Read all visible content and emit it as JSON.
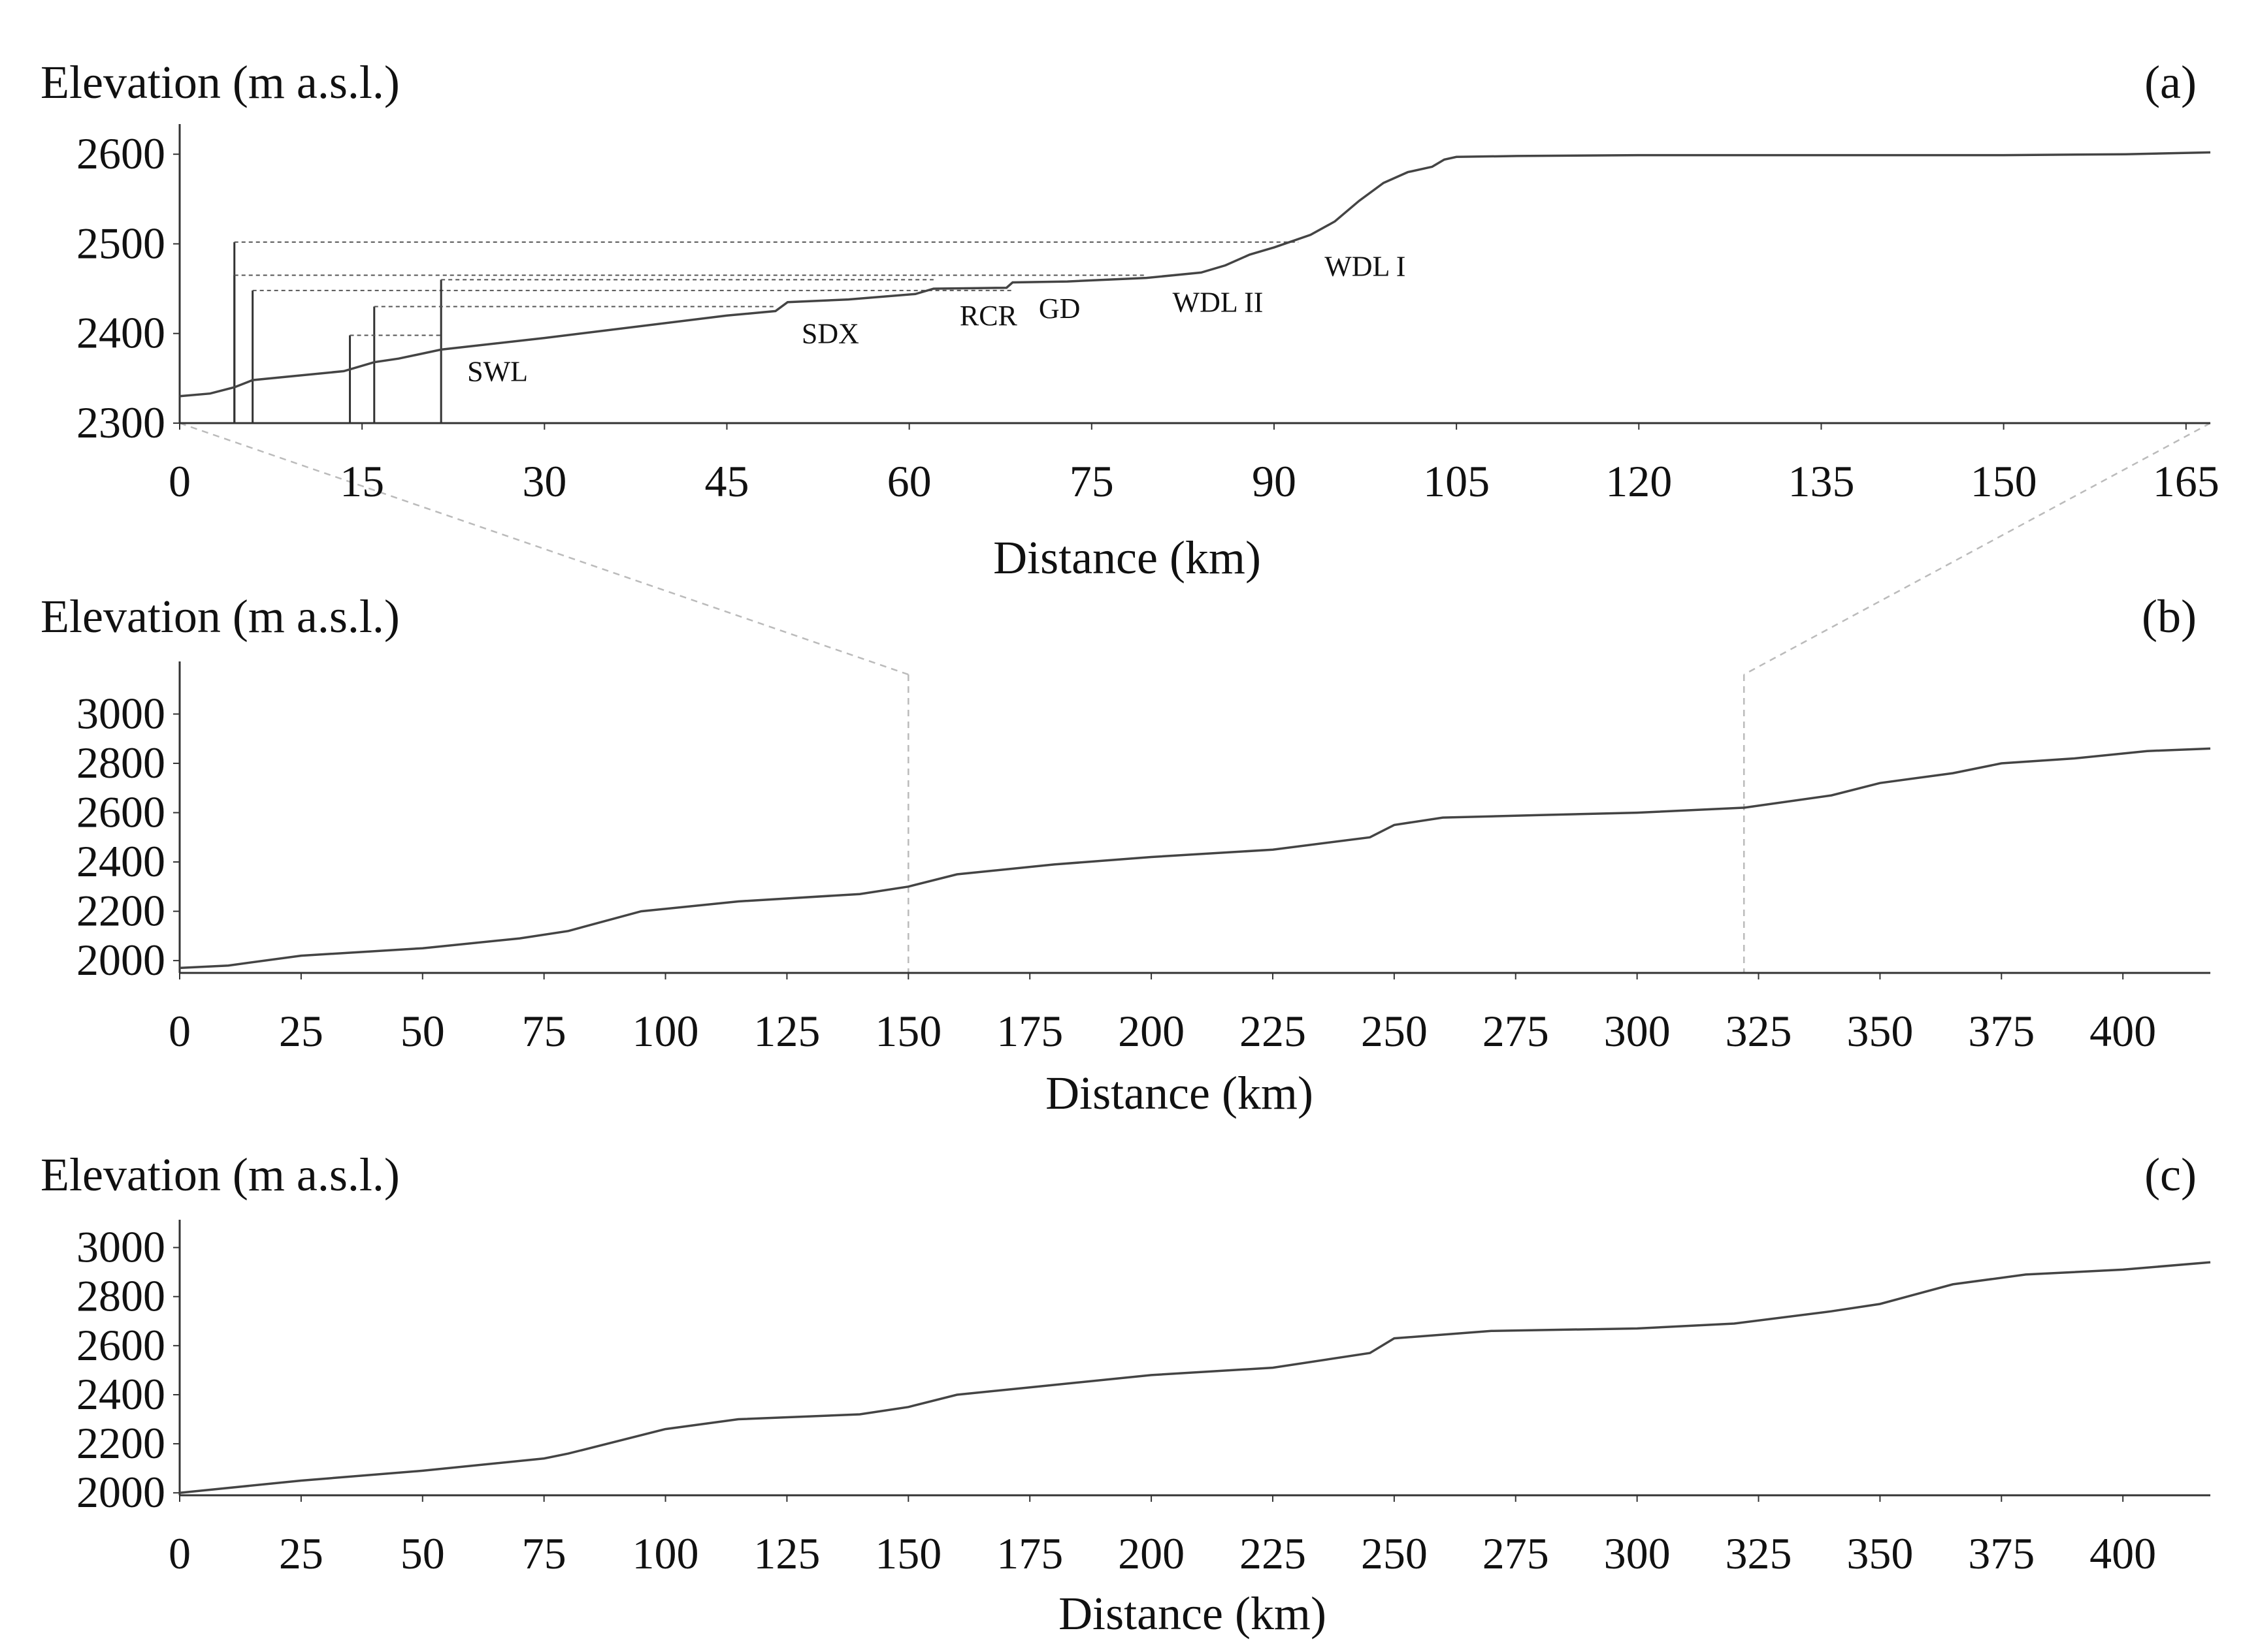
{
  "chart_data": [
    {
      "type": "line",
      "panel_label": "(a)",
      "ylabel": "Elevation (m a.s.l.)",
      "xlabel": "Distance (km)",
      "xlim": [
        0,
        167
      ],
      "ylim": [
        2300,
        2630
      ],
      "xticks": [
        0,
        15,
        30,
        45,
        60,
        75,
        90,
        105,
        120,
        135,
        150,
        165
      ],
      "yticks": [
        2300,
        2400,
        2500,
        2600
      ],
      "line_color": "#444444",
      "series": [
        {
          "x": [
            0,
            2.5,
            4.5,
            6,
            9,
            13.5,
            16,
            18,
            21.5,
            30,
            45,
            49,
            50,
            55,
            60.5,
            62,
            68,
            68.5,
            73,
            79.5,
            84,
            86,
            88,
            90,
            93,
            95,
            97,
            99,
            101,
            103,
            104,
            105,
            110,
            120,
            135,
            150,
            160,
            167
          ],
          "y": [
            2330,
            2333,
            2340,
            2348,
            2352,
            2358,
            2368,
            2372,
            2382,
            2395,
            2420,
            2425,
            2435,
            2438,
            2444,
            2450,
            2451,
            2457,
            2458,
            2462,
            2468,
            2476,
            2488,
            2496,
            2510,
            2525,
            2548,
            2568,
            2580,
            2586,
            2594,
            2597,
            2598,
            2599,
            2599,
            2599,
            2600,
            2602
          ]
        }
      ],
      "stations": [
        {
          "name": "SWL",
          "x": 21.5,
          "y": 2385
        },
        {
          "name": "SDX",
          "x": 49,
          "y": 2427
        },
        {
          "name": "RCR",
          "x": 62,
          "y": 2447
        },
        {
          "name": "GD",
          "x": 68.5,
          "y": 2455
        },
        {
          "name": "WDL II",
          "x": 79.5,
          "y": 2462
        },
        {
          "name": "WDL I",
          "x": 92,
          "y": 2502
        }
      ],
      "reference_lines": [
        {
          "x_from": 4.5,
          "x_to": 92,
          "y": 2502
        },
        {
          "x_from": 4.5,
          "x_to": 79.5,
          "y": 2465
        },
        {
          "x_from": 6,
          "x_to": 68.5,
          "y": 2448
        },
        {
          "x_from": 21.5,
          "x_to": 62,
          "y": 2460
        },
        {
          "x_from": 16,
          "x_to": 49,
          "y": 2430
        },
        {
          "x_from": 14,
          "x_to": 21.5,
          "y": 2398
        }
      ]
    },
    {
      "type": "line",
      "panel_label": "(b)",
      "ylabel": "Elevation (m a.s.l.)",
      "xlabel": "Distance (km)",
      "xlim": [
        0,
        418
      ],
      "ylim": [
        1950,
        3200
      ],
      "xticks": [
        0,
        25,
        50,
        75,
        100,
        125,
        150,
        175,
        200,
        225,
        250,
        275,
        300,
        325,
        350,
        375,
        400
      ],
      "yticks": [
        2000,
        2200,
        2400,
        2600,
        2800,
        3000
      ],
      "line_color": "#444444",
      "zoom_window_x": [
        150,
        322
      ],
      "series": [
        {
          "x": [
            0,
            10,
            25,
            50,
            70,
            80,
            95,
            115,
            140,
            150,
            160,
            180,
            200,
            225,
            245,
            250,
            260,
            280,
            300,
            322,
            340,
            350,
            365,
            375,
            390,
            405,
            418
          ],
          "y": [
            1970,
            1980,
            2020,
            2050,
            2090,
            2120,
            2200,
            2240,
            2270,
            2300,
            2350,
            2390,
            2420,
            2450,
            2500,
            2550,
            2580,
            2590,
            2600,
            2620,
            2670,
            2720,
            2760,
            2800,
            2820,
            2850,
            2860
          ]
        }
      ]
    },
    {
      "type": "line",
      "panel_label": "(c)",
      "ylabel": "Elevation (m a.s.l.)",
      "xlabel": "Distance (km)",
      "xlim": [
        0,
        418
      ],
      "ylim": [
        1990,
        3100
      ],
      "xticks": [
        0,
        25,
        50,
        75,
        100,
        125,
        150,
        175,
        200,
        225,
        250,
        275,
        300,
        325,
        350,
        375,
        400
      ],
      "yticks": [
        2000,
        2200,
        2400,
        2600,
        2800,
        3000
      ],
      "line_color": "#444444",
      "series": [
        {
          "x": [
            0,
            25,
            50,
            75,
            80,
            100,
            115,
            140,
            150,
            160,
            175,
            200,
            225,
            245,
            250,
            270,
            300,
            320,
            340,
            350,
            365,
            380,
            400,
            418
          ],
          "y": [
            2000,
            2050,
            2090,
            2140,
            2160,
            2260,
            2300,
            2320,
            2350,
            2400,
            2430,
            2480,
            2510,
            2570,
            2630,
            2660,
            2670,
            2690,
            2740,
            2770,
            2850,
            2890,
            2910,
            2940
          ]
        }
      ]
    }
  ]
}
